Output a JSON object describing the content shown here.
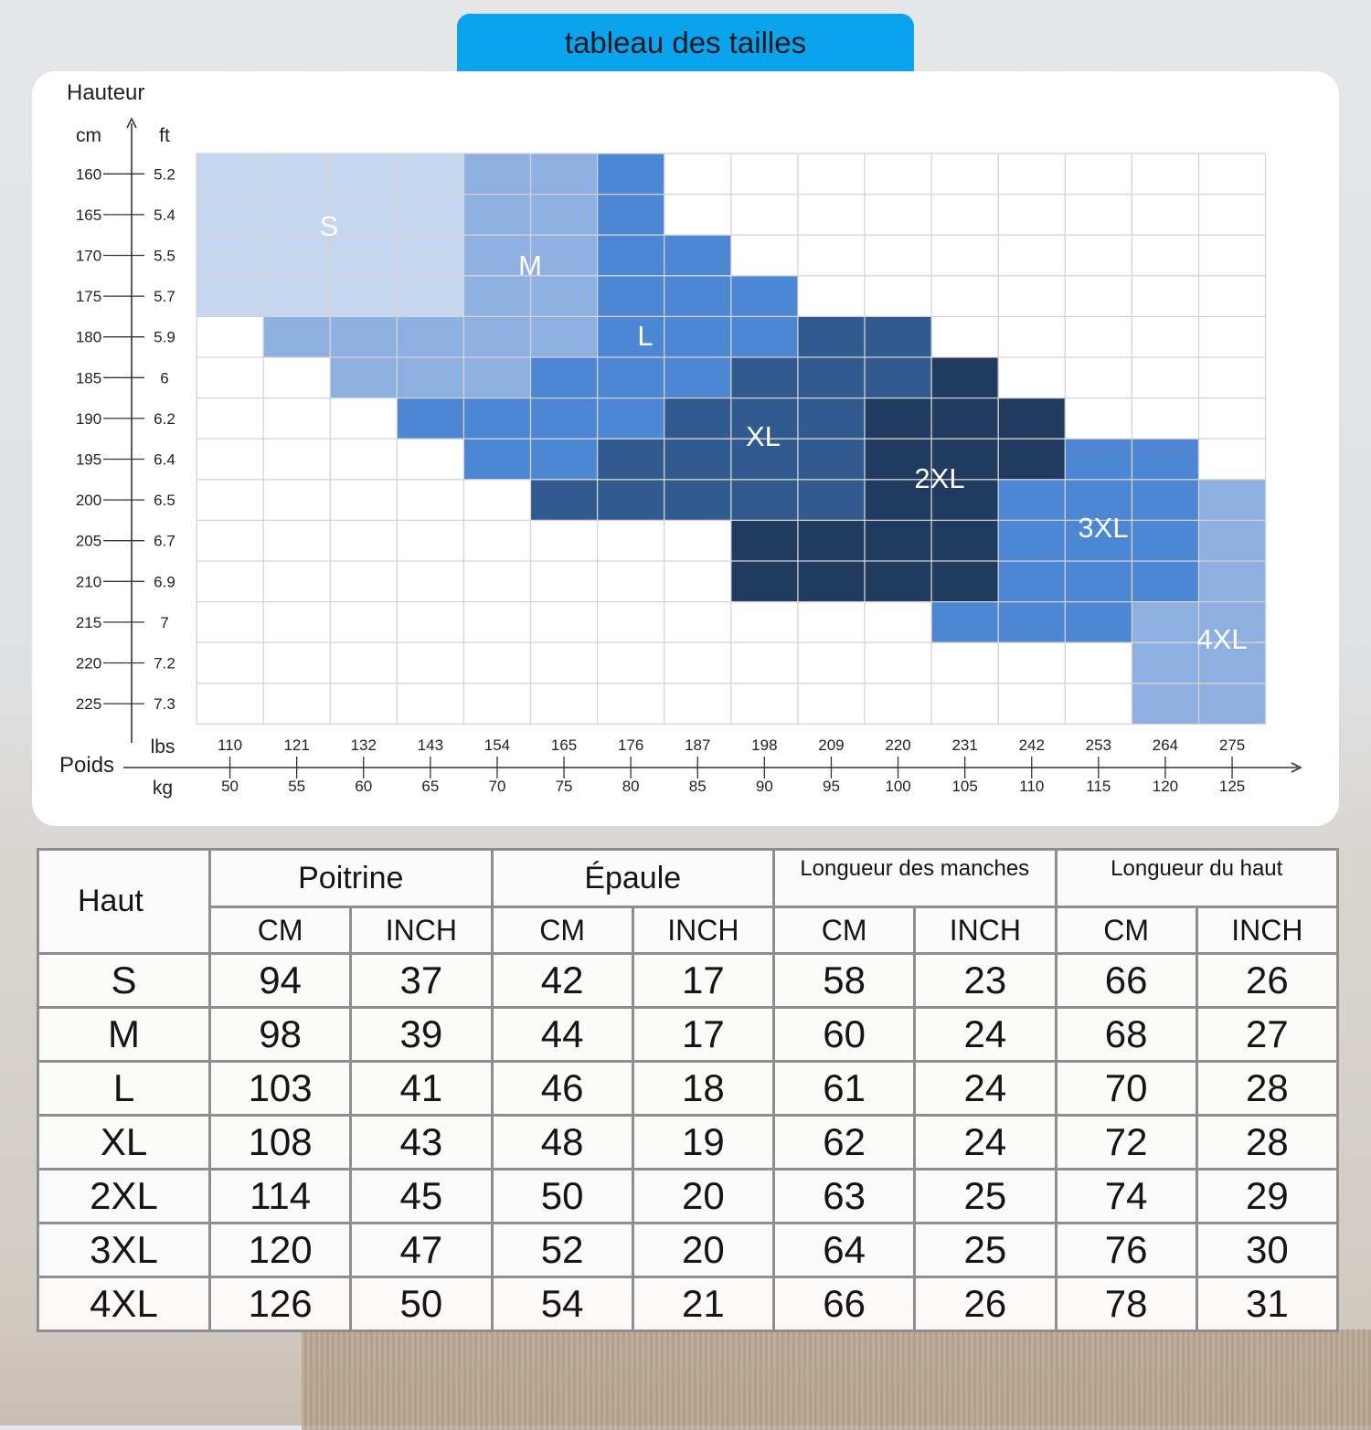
{
  "header": {
    "title": "tableau des tailles"
  },
  "colors": {
    "title_bg": "#0aa4ee",
    "S": "#c5d7ef",
    "M": "#8eb0e0",
    "L": "#4d87d3",
    "XL": "#315b8f",
    "2XL": "#213a60",
    "3XL": "#4d87d3",
    "4XL": "#8eb0e0",
    "grid": "#d4d4d4"
  },
  "chart_data": {
    "type": "heatmap",
    "y_axis_title": "Hauteur",
    "y_unit_cm": "cm",
    "y_unit_ft": "ft",
    "y_cm": [
      "160",
      "165",
      "170",
      "175",
      "180",
      "185",
      "190",
      "195",
      "200",
      "205",
      "210",
      "215",
      "220",
      "225"
    ],
    "y_ft": [
      "5.2",
      "5.4",
      "5.5",
      "5.7",
      "5.9",
      "6",
      "6.2",
      "6.4",
      "6.5",
      "6.7",
      "6.9",
      "7",
      "7.2",
      "7.3"
    ],
    "x_axis_title": "Poids",
    "x_unit_lbs": "lbs",
    "x_unit_kg": "kg",
    "x_lbs": [
      "110",
      "121",
      "132",
      "143",
      "154",
      "165",
      "176",
      "187",
      "198",
      "209",
      "220",
      "231",
      "242",
      "253",
      "264",
      "275"
    ],
    "x_kg": [
      "50",
      "55",
      "60",
      "65",
      "70",
      "75",
      "80",
      "85",
      "90",
      "95",
      "100",
      "105",
      "110",
      "115",
      "120",
      "125"
    ],
    "grid": true,
    "zones": [
      {
        "size": "S",
        "cells": [
          [
            0,
            0
          ],
          [
            1,
            0
          ],
          [
            2,
            0
          ],
          [
            3,
            0
          ],
          [
            0,
            1
          ],
          [
            1,
            1
          ],
          [
            2,
            1
          ],
          [
            3,
            1
          ],
          [
            0,
            2
          ],
          [
            1,
            2
          ],
          [
            2,
            2
          ],
          [
            3,
            2
          ],
          [
            0,
            3
          ],
          [
            1,
            3
          ],
          [
            2,
            3
          ],
          [
            3,
            3
          ]
        ]
      },
      {
        "size": "M",
        "cells": [
          [
            4,
            0
          ],
          [
            5,
            0
          ],
          [
            4,
            1
          ],
          [
            5,
            1
          ],
          [
            4,
            2
          ],
          [
            5,
            2
          ],
          [
            4,
            3
          ],
          [
            5,
            3
          ],
          [
            1,
            4
          ],
          [
            2,
            4
          ],
          [
            3,
            4
          ],
          [
            4,
            4
          ],
          [
            5,
            4
          ],
          [
            2,
            5
          ],
          [
            3,
            5
          ],
          [
            4,
            5
          ]
        ]
      },
      {
        "size": "L",
        "cells": [
          [
            6,
            0
          ],
          [
            6,
            1
          ],
          [
            6,
            2
          ],
          [
            7,
            2
          ],
          [
            6,
            3
          ],
          [
            7,
            3
          ],
          [
            8,
            3
          ],
          [
            6,
            4
          ],
          [
            7,
            4
          ],
          [
            8,
            4
          ],
          [
            5,
            5
          ],
          [
            6,
            5
          ],
          [
            7,
            5
          ],
          [
            3,
            6
          ],
          [
            4,
            6
          ],
          [
            5,
            6
          ],
          [
            6,
            6
          ],
          [
            4,
            7
          ],
          [
            5,
            7
          ]
        ]
      },
      {
        "size": "XL",
        "cells": [
          [
            9,
            4
          ],
          [
            10,
            4
          ],
          [
            8,
            5
          ],
          [
            9,
            5
          ],
          [
            10,
            5
          ],
          [
            7,
            6
          ],
          [
            8,
            6
          ],
          [
            9,
            6
          ],
          [
            6,
            7
          ],
          [
            7,
            7
          ],
          [
            8,
            7
          ],
          [
            9,
            7
          ],
          [
            5,
            8
          ],
          [
            6,
            8
          ],
          [
            7,
            8
          ],
          [
            8,
            8
          ],
          [
            9,
            8
          ]
        ]
      },
      {
        "size": "2XL",
        "cells": [
          [
            11,
            5
          ],
          [
            10,
            6
          ],
          [
            11,
            6
          ],
          [
            12,
            6
          ],
          [
            10,
            7
          ],
          [
            11,
            7
          ],
          [
            12,
            7
          ],
          [
            10,
            8
          ],
          [
            11,
            8
          ],
          [
            8,
            9
          ],
          [
            9,
            9
          ],
          [
            10,
            9
          ],
          [
            11,
            9
          ],
          [
            8,
            10
          ],
          [
            9,
            10
          ],
          [
            10,
            10
          ],
          [
            11,
            10
          ]
        ]
      },
      {
        "size": "3XL",
        "cells": [
          [
            13,
            7
          ],
          [
            14,
            7
          ],
          [
            12,
            8
          ],
          [
            13,
            8
          ],
          [
            14,
            8
          ],
          [
            12,
            9
          ],
          [
            13,
            9
          ],
          [
            14,
            9
          ],
          [
            12,
            10
          ],
          [
            13,
            10
          ],
          [
            14,
            10
          ],
          [
            11,
            11
          ],
          [
            12,
            11
          ],
          [
            13,
            11
          ]
        ]
      },
      {
        "size": "4XL",
        "cells": [
          [
            15,
            8
          ],
          [
            15,
            9
          ],
          [
            15,
            10
          ],
          [
            14,
            11
          ],
          [
            15,
            11
          ],
          [
            14,
            12
          ],
          [
            15,
            12
          ],
          [
            14,
            13
          ],
          [
            15,
            13
          ]
        ]
      }
    ]
  },
  "table": {
    "corner": "Haut",
    "groups": [
      "Poitrine",
      "Épaule",
      "Longueur des manches",
      "Longueur du haut"
    ],
    "units": [
      "CM",
      "INCH",
      "CM",
      "INCH",
      "CM",
      "INCH",
      "CM",
      "INCH"
    ],
    "rows": [
      [
        "S",
        "94",
        "37",
        "42",
        "17",
        "58",
        "23",
        "66",
        "26"
      ],
      [
        "M",
        "98",
        "39",
        "44",
        "17",
        "60",
        "24",
        "68",
        "27"
      ],
      [
        "L",
        "103",
        "41",
        "46",
        "18",
        "61",
        "24",
        "70",
        "28"
      ],
      [
        "XL",
        "108",
        "43",
        "48",
        "19",
        "62",
        "24",
        "72",
        "28"
      ],
      [
        "2XL",
        "114",
        "45",
        "50",
        "20",
        "63",
        "25",
        "74",
        "29"
      ],
      [
        "3XL",
        "120",
        "47",
        "52",
        "20",
        "64",
        "25",
        "76",
        "30"
      ],
      [
        "4XL",
        "126",
        "50",
        "54",
        "21",
        "66",
        "26",
        "78",
        "31"
      ]
    ]
  }
}
